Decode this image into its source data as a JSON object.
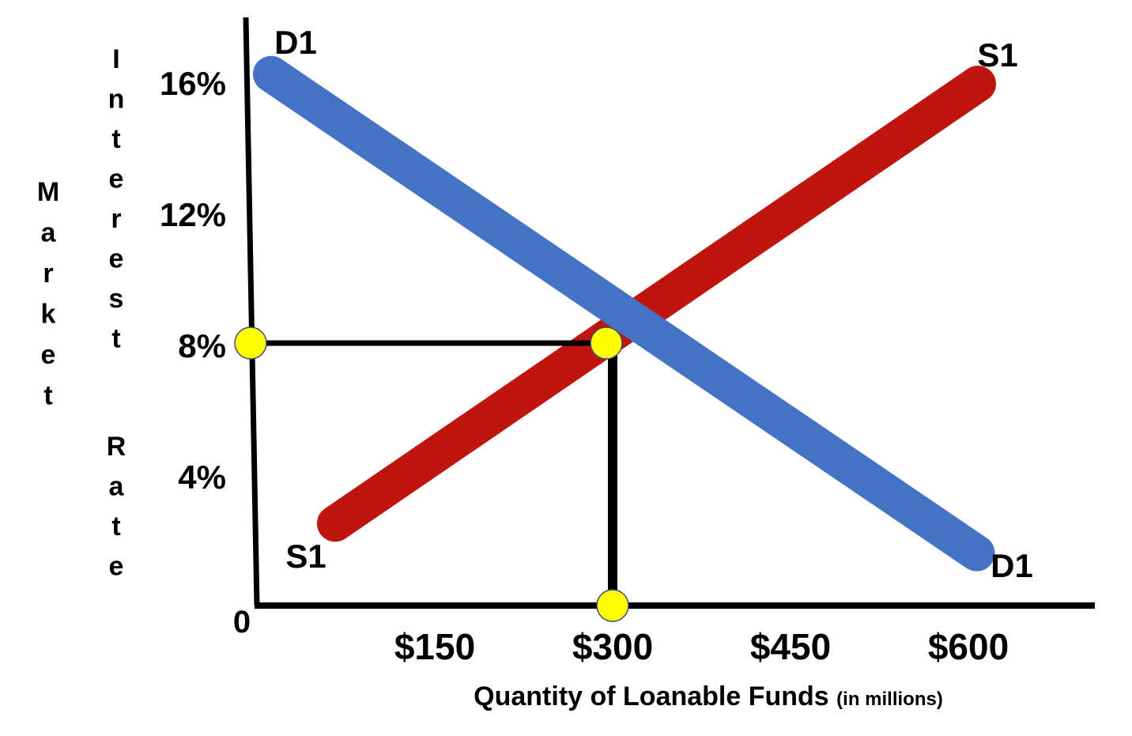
{
  "chart_data": {
    "type": "line",
    "title": "",
    "xlabel": "Quantity of Loanable Funds",
    "xlabel_note": "(in millions)",
    "ylabel_part1": "Market",
    "ylabel_part2": "Interest Rate",
    "origin_label": "0",
    "x_ticks": [
      {
        "value": 150,
        "label": "$150"
      },
      {
        "value": 300,
        "label": "$300"
      },
      {
        "value": 450,
        "label": "$450"
      },
      {
        "value": 600,
        "label": "$600"
      }
    ],
    "y_ticks": [
      {
        "value": 4,
        "label": "4%"
      },
      {
        "value": 8,
        "label": "8%"
      },
      {
        "value": 12,
        "label": "12%"
      },
      {
        "value": 16,
        "label": "16%"
      }
    ],
    "xlim": [
      0,
      735
    ],
    "ylim": [
      0,
      19
    ],
    "series": [
      {
        "name": "D1",
        "color": "#4472C4",
        "points": [
          [
            12,
            16.2
          ],
          [
            607,
            1.6
          ]
        ],
        "start_label": "D1",
        "end_label": "D1"
      },
      {
        "name": "S1",
        "color": "#C0150F",
        "points": [
          [
            66,
            2.5
          ],
          [
            608,
            15.9
          ]
        ],
        "start_label": "S1",
        "end_label": "S1"
      }
    ],
    "equilibrium": {
      "x": 300,
      "y": 8,
      "marker_color": "#FFFF00"
    },
    "grid": false,
    "legend": "none"
  }
}
